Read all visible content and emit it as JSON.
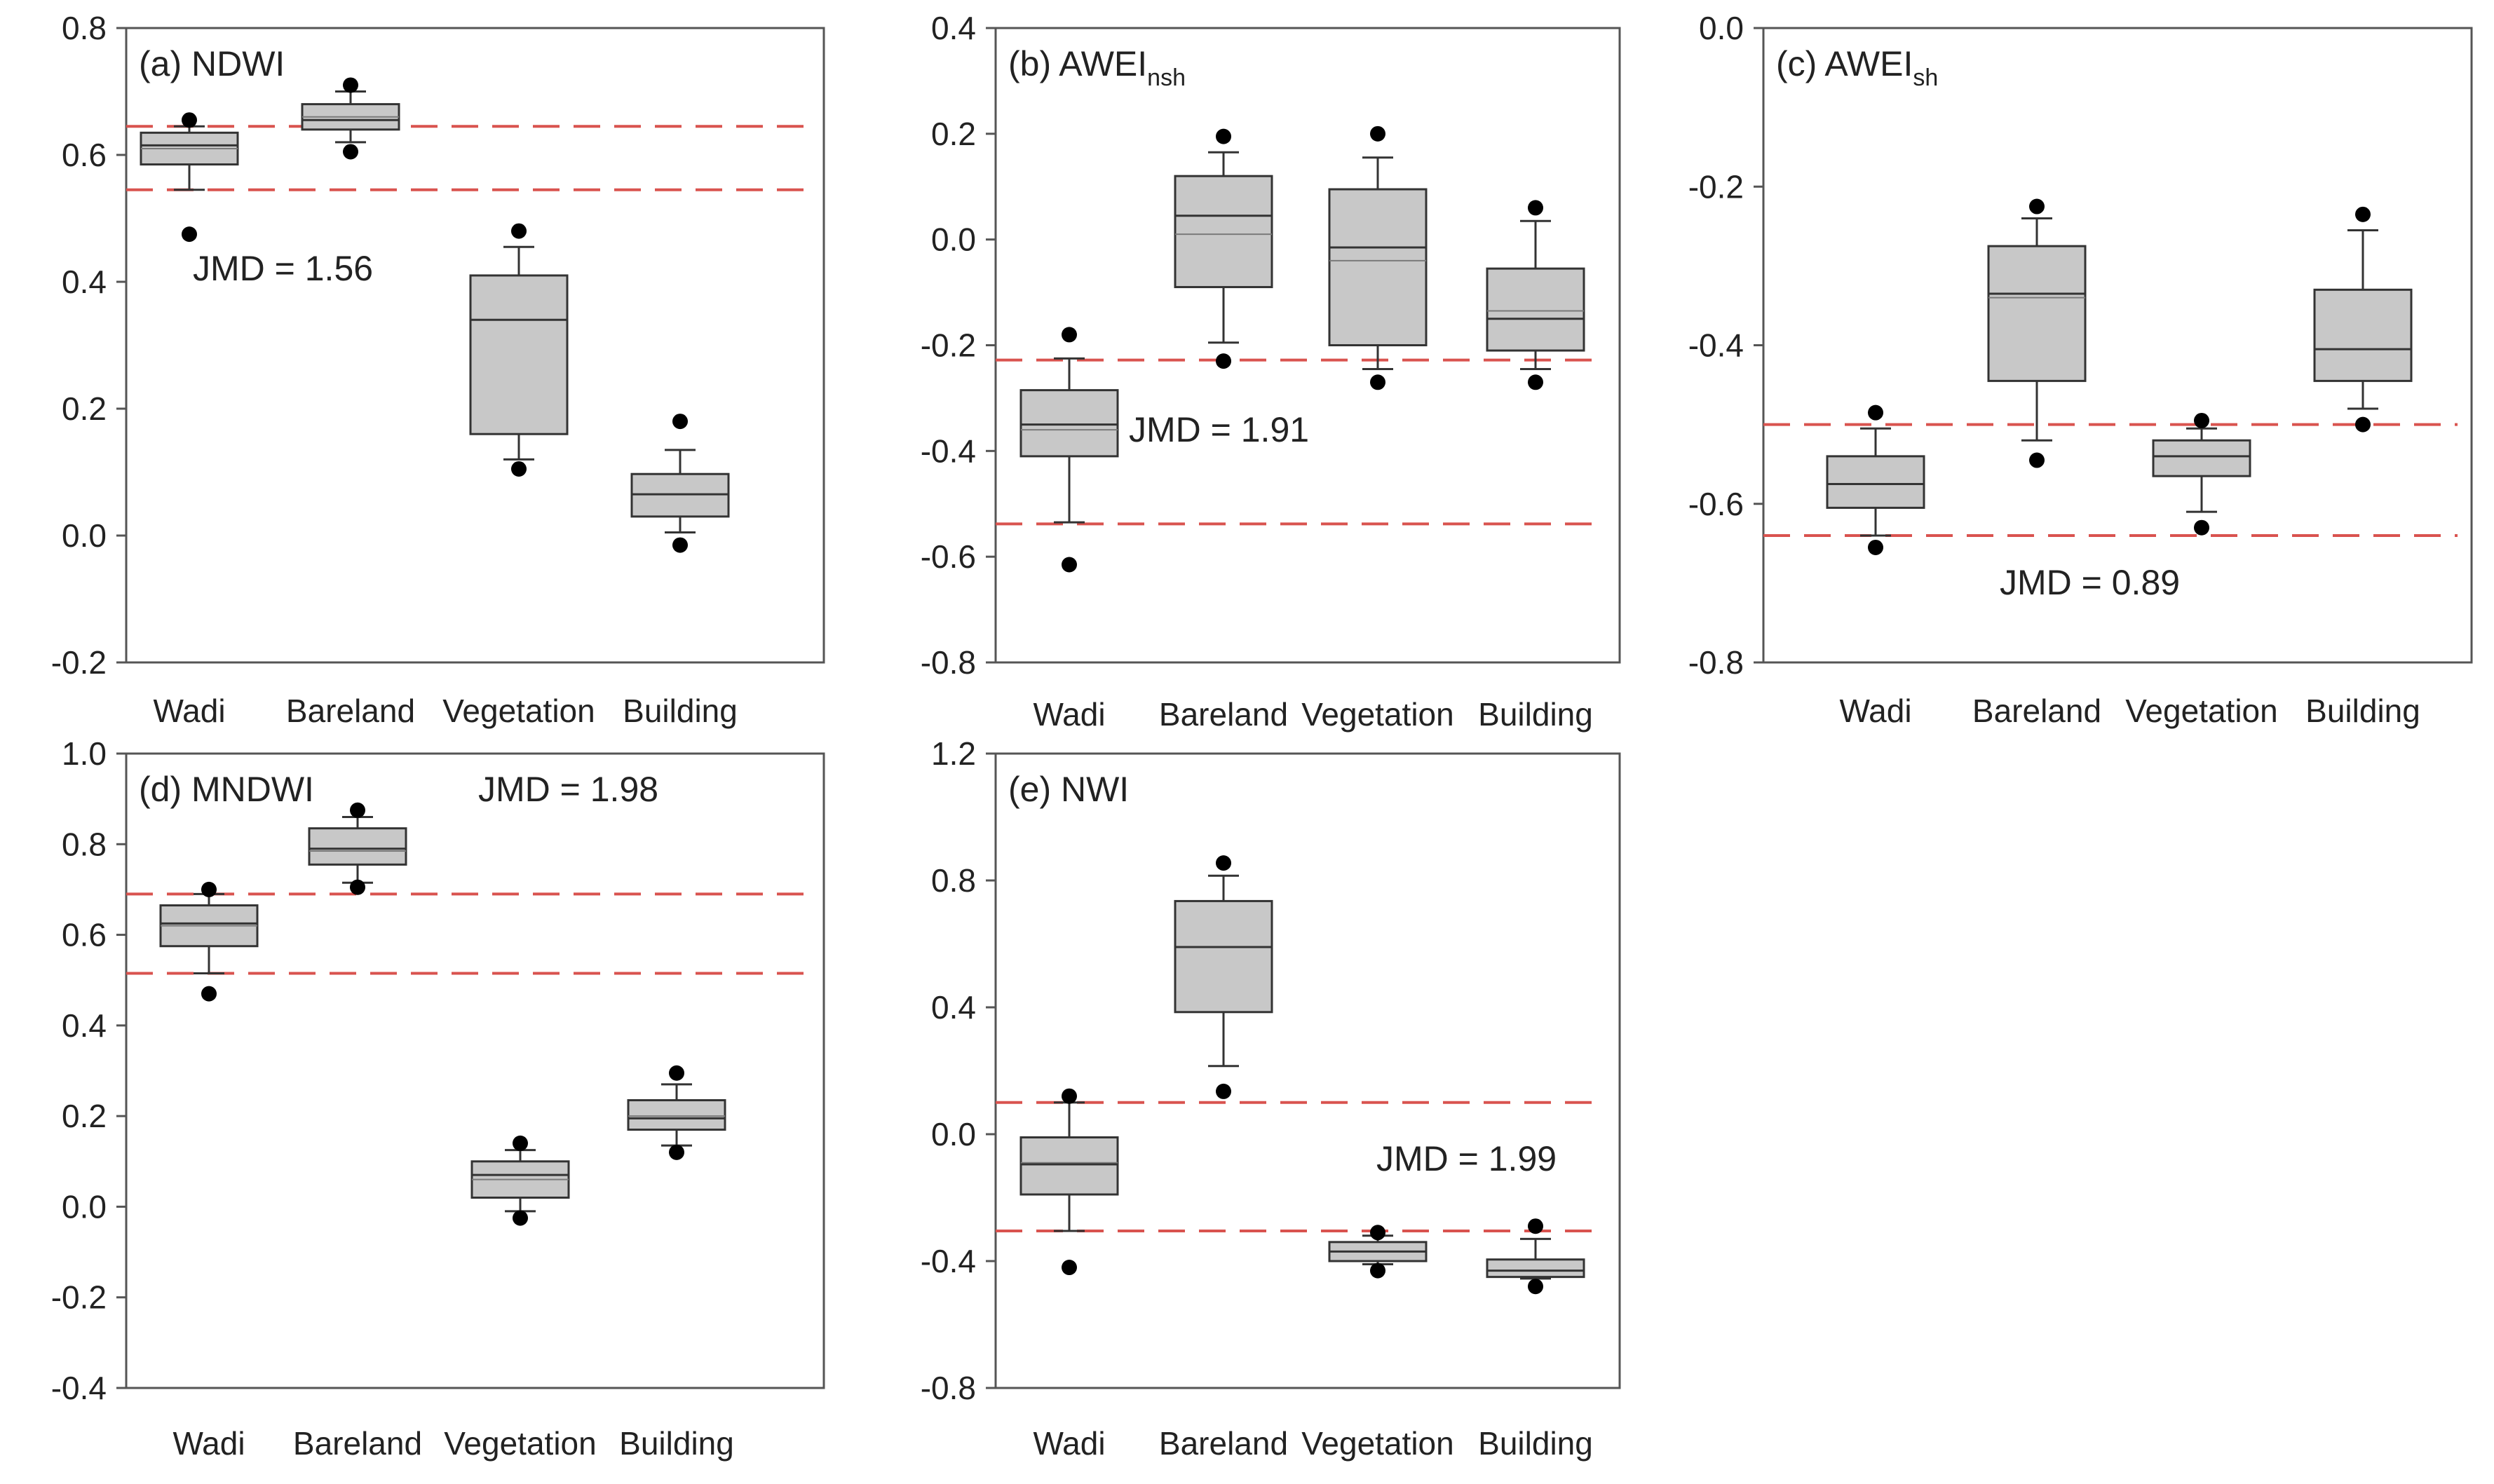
{
  "figure": {
    "panel_order": [
      "a",
      "b",
      "c",
      "d",
      "e"
    ]
  },
  "chart_data": [
    {
      "panel": "a",
      "type": "box",
      "title": "(a) NDWI",
      "title_main": "(a) NDWI",
      "title_sub": "",
      "categories": [
        "Wadi",
        "Bareland",
        "Vegetation",
        "Building"
      ],
      "ylim": [
        -0.2,
        0.8
      ],
      "yticks": [
        -0.2,
        0.0,
        0.2,
        0.4,
        0.6,
        0.8
      ],
      "ytick_labels": [
        "-0.2",
        "0.0",
        "0.2",
        "0.4",
        "0.6",
        "0.8"
      ],
      "grid": false,
      "boxes": [
        {
          "category": "Wadi",
          "whisker_low": 0.545,
          "q1": 0.585,
          "median": 0.615,
          "mean": 0.61,
          "q3": 0.635,
          "whisker_high": 0.645,
          "outliers": [
            0.475,
            0.655
          ]
        },
        {
          "category": "Bareland",
          "whisker_low": 0.62,
          "q1": 0.64,
          "median": 0.655,
          "mean": 0.66,
          "q3": 0.68,
          "whisker_high": 0.7,
          "outliers": [
            0.605,
            0.71
          ]
        },
        {
          "category": "Vegetation",
          "whisker_low": 0.12,
          "q1": 0.16,
          "median": 0.34,
          "mean": 0.34,
          "q3": 0.41,
          "whisker_high": 0.455,
          "outliers": [
            0.105,
            0.48
          ]
        },
        {
          "category": "Building",
          "whisker_low": 0.005,
          "q1": 0.03,
          "median": 0.065,
          "mean": 0.065,
          "q3": 0.097,
          "whisker_high": 0.135,
          "outliers": [
            -0.015,
            0.18
          ]
        }
      ],
      "threshold_lines": [
        0.645,
        0.545
      ],
      "annotation": "JMD = 1.56"
    },
    {
      "panel": "b",
      "type": "box",
      "title": "(b) AWEInsh",
      "title_main": "(b) AWEI",
      "title_sub": "nsh",
      "categories": [
        "Wadi",
        "Bareland",
        "Vegetation",
        "Building"
      ],
      "ylim": [
        -0.8,
        0.4
      ],
      "yticks": [
        -0.8,
        -0.6,
        -0.4,
        -0.2,
        0.0,
        0.2,
        0.4
      ],
      "ytick_labels": [
        "-0.8",
        "-0.6",
        "-0.4",
        "-0.2",
        "0.0",
        "0.2",
        "0.4"
      ],
      "grid": false,
      "boxes": [
        {
          "category": "Wadi",
          "whisker_low": -0.535,
          "q1": -0.41,
          "median": -0.35,
          "mean": -0.36,
          "q3": -0.285,
          "whisker_high": -0.225,
          "outliers": [
            -0.615,
            -0.18
          ]
        },
        {
          "category": "Bareland",
          "whisker_low": -0.195,
          "q1": -0.09,
          "median": 0.045,
          "mean": 0.01,
          "q3": 0.12,
          "whisker_high": 0.165,
          "outliers": [
            -0.23,
            0.195
          ]
        },
        {
          "category": "Vegetation",
          "whisker_low": -0.245,
          "q1": -0.2,
          "median": -0.015,
          "mean": -0.04,
          "q3": 0.095,
          "whisker_high": 0.155,
          "outliers": [
            -0.27,
            0.2
          ]
        },
        {
          "category": "Building",
          "whisker_low": -0.245,
          "q1": -0.21,
          "median": -0.15,
          "mean": -0.135,
          "q3": -0.055,
          "whisker_high": 0.035,
          "outliers": [
            -0.27,
            0.06
          ]
        }
      ],
      "threshold_lines": [
        -0.228,
        -0.538
      ],
      "annotation": "JMD = 1.91"
    },
    {
      "panel": "c",
      "type": "box",
      "title": "(c) AWEIsh",
      "title_main": "(c) AWEI",
      "title_sub": "sh",
      "categories": [
        "Wadi",
        "Bareland",
        "Vegetation",
        "Building"
      ],
      "ylim": [
        -0.8,
        0.0
      ],
      "yticks": [
        -0.8,
        -0.6,
        -0.4,
        -0.2,
        0.0
      ],
      "ytick_labels": [
        "-0.8",
        "-0.6",
        "-0.4",
        "-0.2",
        "0.0"
      ],
      "grid": false,
      "boxes": [
        {
          "category": "Wadi",
          "whisker_low": -0.64,
          "q1": -0.605,
          "median": -0.575,
          "mean": -0.575,
          "q3": -0.54,
          "whisker_high": -0.505,
          "outliers": [
            -0.655,
            -0.485
          ]
        },
        {
          "category": "Bareland",
          "whisker_low": -0.52,
          "q1": -0.445,
          "median": -0.335,
          "mean": -0.34,
          "q3": -0.275,
          "whisker_high": -0.24,
          "outliers": [
            -0.545,
            -0.225
          ]
        },
        {
          "category": "Vegetation",
          "whisker_low": -0.61,
          "q1": -0.565,
          "median": -0.54,
          "mean": -0.54,
          "q3": -0.52,
          "whisker_high": -0.505,
          "outliers": [
            -0.63,
            -0.495
          ]
        },
        {
          "category": "Building",
          "whisker_low": -0.48,
          "q1": -0.445,
          "median": -0.405,
          "mean": -0.405,
          "q3": -0.33,
          "whisker_high": -0.255,
          "outliers": [
            -0.5,
            -0.235
          ]
        }
      ],
      "threshold_lines": [
        -0.5,
        -0.64
      ],
      "annotation": "JMD = 0.89"
    },
    {
      "panel": "d",
      "type": "box",
      "title": "(d) MNDWI",
      "title_main": "(d) MNDWI",
      "title_sub": "",
      "categories": [
        "Wadi",
        "Bareland",
        "Vegetation",
        "Building"
      ],
      "ylim": [
        -0.4,
        1.0
      ],
      "yticks": [
        -0.4,
        -0.2,
        0.0,
        0.2,
        0.4,
        0.6,
        0.8,
        1.0
      ],
      "ytick_labels": [
        "-0.4",
        "-0.2",
        "0.0",
        "0.2",
        "0.4",
        "0.6",
        "0.8",
        "1.0"
      ],
      "grid": false,
      "boxes": [
        {
          "category": "Wadi",
          "whisker_low": 0.515,
          "q1": 0.575,
          "median": 0.625,
          "mean": 0.62,
          "q3": 0.665,
          "whisker_high": 0.69,
          "outliers": [
            0.47,
            0.7
          ]
        },
        {
          "category": "Bareland",
          "whisker_low": 0.715,
          "q1": 0.755,
          "median": 0.79,
          "mean": 0.785,
          "q3": 0.835,
          "whisker_high": 0.86,
          "outliers": [
            0.705,
            0.875
          ]
        },
        {
          "category": "Vegetation",
          "whisker_low": -0.01,
          "q1": 0.02,
          "median": 0.07,
          "mean": 0.06,
          "q3": 0.1,
          "whisker_high": 0.125,
          "outliers": [
            -0.025,
            0.14
          ]
        },
        {
          "category": "Building",
          "whisker_low": 0.135,
          "q1": 0.17,
          "median": 0.195,
          "mean": 0.2,
          "q3": 0.235,
          "whisker_high": 0.27,
          "outliers": [
            0.12,
            0.295
          ]
        }
      ],
      "threshold_lines": [
        0.69,
        0.515
      ],
      "annotation": "JMD = 1.98"
    },
    {
      "panel": "e",
      "type": "box",
      "title": "(e) NWI",
      "title_main": "(e) NWI",
      "title_sub": "",
      "categories": [
        "Wadi",
        "Bareland",
        "Vegetation",
        "Building"
      ],
      "ylim": [
        -0.8,
        1.2
      ],
      "yticks": [
        -0.8,
        -0.4,
        0.0,
        0.4,
        0.8,
        1.2
      ],
      "ytick_labels": [
        "-0.8",
        "-0.4",
        "0.0",
        "0.4",
        "0.8",
        "1.2"
      ],
      "grid": false,
      "boxes": [
        {
          "category": "Wadi",
          "whisker_low": -0.305,
          "q1": -0.19,
          "median": -0.095,
          "mean": -0.09,
          "q3": -0.01,
          "whisker_high": 0.1,
          "outliers": [
            -0.42,
            0.12
          ]
        },
        {
          "category": "Bareland",
          "whisker_low": 0.215,
          "q1": 0.385,
          "median": 0.59,
          "mean": 0.59,
          "q3": 0.735,
          "whisker_high": 0.815,
          "outliers": [
            0.135,
            0.855
          ]
        },
        {
          "category": "Vegetation",
          "whisker_low": -0.41,
          "q1": -0.4,
          "median": -0.37,
          "mean": -0.37,
          "q3": -0.34,
          "whisker_high": -0.32,
          "outliers": [
            -0.43,
            -0.31
          ]
        },
        {
          "category": "Building",
          "whisker_low": -0.455,
          "q1": -0.45,
          "median": -0.43,
          "mean": -0.43,
          "q3": -0.395,
          "whisker_high": -0.33,
          "outliers": [
            -0.48,
            -0.29
          ]
        }
      ],
      "threshold_lines": [
        0.1,
        -0.305
      ],
      "annotation": "JMD = 1.99"
    }
  ],
  "colors": {
    "box_fill": "#c8c8c8",
    "box_stroke": "#333333",
    "mean_line": "#7a7a7a",
    "outlier": "#000000",
    "threshold": "#d9534f",
    "axis": "#555555",
    "text": "#222222"
  }
}
